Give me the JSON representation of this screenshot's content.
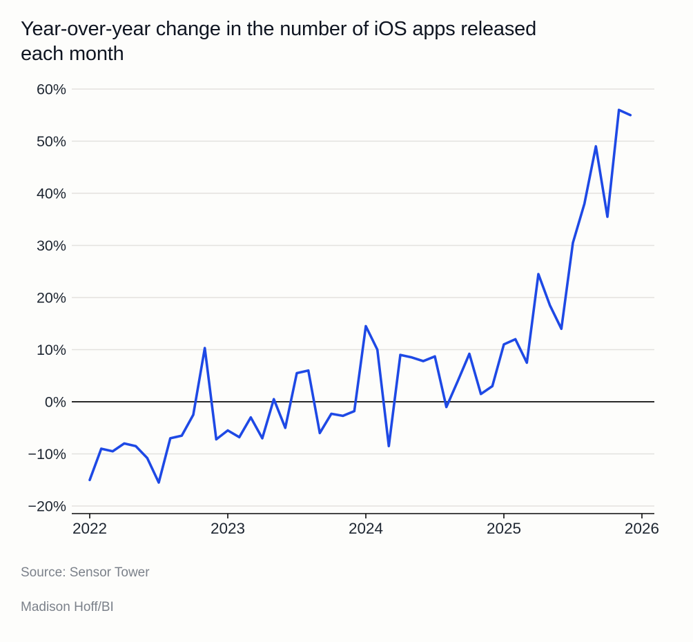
{
  "header": {
    "title_lines": [
      "Year-over-year change in the number of iOS apps released",
      "each month"
    ]
  },
  "footer": {
    "source": "Source: Sensor Tower",
    "credit": "Madison Hoff/BI"
  },
  "chart_data": {
    "type": "line",
    "title": "Year-over-year change in the number of iOS apps released each month",
    "xlabel": "",
    "ylabel": "",
    "unit": "%",
    "frequency": "monthly",
    "x_start": "2022-01",
    "x_end": "2025-12",
    "values": [
      -15,
      -9,
      -9.5,
      -8,
      -8.5,
      -10.8,
      -15.5,
      -7,
      -6.5,
      -2.5,
      10.3,
      -7.2,
      -5.5,
      -6.8,
      -3,
      -7,
      0.5,
      -5,
      5.5,
      6,
      -6,
      -2.3,
      -2.7,
      -1.8,
      14.5,
      10,
      -8.5,
      9,
      8.5,
      7.8,
      8.7,
      -1,
      4,
      9.2,
      1.5,
      3,
      11,
      12,
      7.5,
      24.5,
      18.5,
      14,
      30.5,
      38,
      49,
      35.5,
      56,
      55
    ],
    "x_ticks": [
      {
        "year": 2022,
        "label": "2022"
      },
      {
        "year": 2023,
        "label": "2023"
      },
      {
        "year": 2024,
        "label": "2024"
      },
      {
        "year": 2025,
        "label": "2025"
      },
      {
        "year": 2026,
        "label": "2026"
      }
    ],
    "xlim": [
      2022,
      2026
    ],
    "y_ticks": [
      {
        "value": 60,
        "label": "60%"
      },
      {
        "value": 50,
        "label": "50%"
      },
      {
        "value": 40,
        "label": "40%"
      },
      {
        "value": 30,
        "label": "30%"
      },
      {
        "value": 20,
        "label": "20%"
      },
      {
        "value": 10,
        "label": "10%"
      },
      {
        "value": 0,
        "label": "0%"
      },
      {
        "value": -10,
        "label": "−10%"
      },
      {
        "value": -20,
        "label": "−20%"
      }
    ],
    "ylim": [
      -20,
      60
    ],
    "grid": true,
    "legend": false,
    "zero_line": true,
    "colors": {
      "line": "#1e49e5",
      "grid": "#e3e2de",
      "zero_line": "#0a0a0a",
      "axis_line": "#0a0a0a",
      "tick_text": "#1d2530",
      "title_text": "#0f1521",
      "muted_text": "#7b818a",
      "background": "#fdfdfb"
    }
  }
}
